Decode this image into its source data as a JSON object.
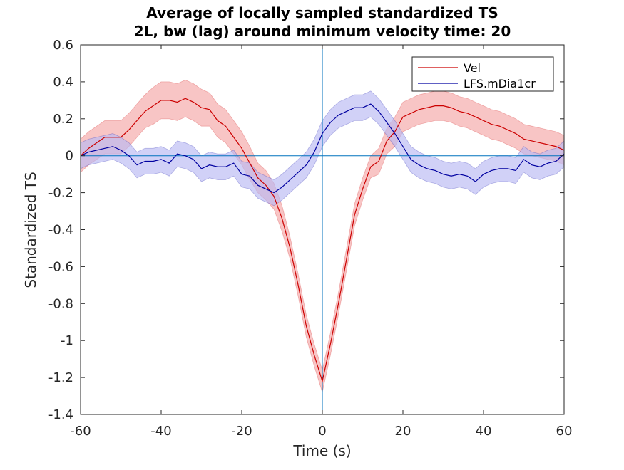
{
  "chart_data": {
    "type": "line",
    "title": [
      "Average of locally sampled standardized TS",
      "2L, bw (lag) around minimum velocity time: 20"
    ],
    "xlabel": "Time (s)",
    "ylabel": "Standardized TS",
    "xlim": [
      -60,
      60
    ],
    "ylim": [
      -1.4,
      0.6
    ],
    "xticks": [
      -60,
      -40,
      -20,
      0,
      20,
      40,
      60
    ],
    "xtick_labels": [
      "-60",
      "-40",
      "-20",
      "0",
      "20",
      "40",
      "60"
    ],
    "yticks": [
      -1.4,
      -1.2,
      -1.0,
      -0.8,
      -0.6,
      -0.4,
      -0.2,
      0,
      0.2,
      0.4,
      0.6
    ],
    "ytick_labels": [
      "-1.4",
      "-1.2",
      "-1",
      "-0.8",
      "-0.6",
      "-0.4",
      "-0.2",
      "0",
      "0.2",
      "0.4",
      "0.6"
    ],
    "grid": false,
    "legend_position": "top-right",
    "reference_lines": {
      "vertical_x": 0,
      "horizontal_y": 0,
      "color": "#0072bd"
    },
    "x": [
      -60,
      -58,
      -56,
      -54,
      -52,
      -50,
      -48,
      -46,
      -44,
      -42,
      -40,
      -38,
      -36,
      -34,
      -32,
      -30,
      -28,
      -26,
      -24,
      -22,
      -20,
      -18,
      -16,
      -14,
      -12,
      -10,
      -8,
      -6,
      -4,
      -2,
      0,
      2,
      4,
      6,
      8,
      10,
      12,
      14,
      16,
      18,
      20,
      22,
      24,
      26,
      28,
      30,
      32,
      34,
      36,
      38,
      40,
      42,
      44,
      46,
      48,
      50,
      52,
      54,
      56,
      58,
      60
    ],
    "series": [
      {
        "name": "Vel",
        "color": "#cc0000",
        "band_color": "#f4a6a6",
        "values": [
          0.0,
          0.04,
          0.07,
          0.1,
          0.1,
          0.1,
          0.14,
          0.19,
          0.24,
          0.27,
          0.3,
          0.3,
          0.29,
          0.31,
          0.29,
          0.26,
          0.25,
          0.19,
          0.16,
          0.1,
          0.04,
          -0.04,
          -0.12,
          -0.16,
          -0.22,
          -0.34,
          -0.5,
          -0.7,
          -0.92,
          -1.08,
          -1.22,
          -1.02,
          -0.8,
          -0.56,
          -0.32,
          -0.18,
          -0.06,
          -0.03,
          0.08,
          0.13,
          0.21,
          0.23,
          0.25,
          0.26,
          0.27,
          0.27,
          0.26,
          0.24,
          0.23,
          0.21,
          0.19,
          0.17,
          0.16,
          0.14,
          0.12,
          0.09,
          0.08,
          0.07,
          0.06,
          0.05,
          0.03
        ],
        "band": [
          0.09,
          0.09,
          0.09,
          0.09,
          0.09,
          0.09,
          0.09,
          0.09,
          0.09,
          0.1,
          0.1,
          0.1,
          0.1,
          0.1,
          0.1,
          0.1,
          0.09,
          0.09,
          0.09,
          0.09,
          0.09,
          0.09,
          0.08,
          0.08,
          0.07,
          0.07,
          0.06,
          0.06,
          0.06,
          0.06,
          0.06,
          0.06,
          0.06,
          0.06,
          0.06,
          0.06,
          0.06,
          0.07,
          0.07,
          0.08,
          0.08,
          0.08,
          0.08,
          0.08,
          0.08,
          0.08,
          0.08,
          0.08,
          0.08,
          0.08,
          0.08,
          0.08,
          0.08,
          0.08,
          0.08,
          0.08,
          0.08,
          0.08,
          0.08,
          0.08,
          0.08
        ]
      },
      {
        "name": "LFS.mDia1cr",
        "color": "#0000a0",
        "band_color": "#b8b8f2",
        "values": [
          0.0,
          0.02,
          0.03,
          0.04,
          0.05,
          0.03,
          0.0,
          -0.05,
          -0.03,
          -0.03,
          -0.02,
          -0.04,
          0.01,
          0.0,
          -0.02,
          -0.07,
          -0.05,
          -0.06,
          -0.06,
          -0.04,
          -0.1,
          -0.11,
          -0.16,
          -0.18,
          -0.2,
          -0.17,
          -0.13,
          -0.09,
          -0.05,
          0.02,
          0.12,
          0.18,
          0.22,
          0.24,
          0.26,
          0.26,
          0.28,
          0.24,
          0.18,
          0.12,
          0.05,
          -0.02,
          -0.05,
          -0.07,
          -0.08,
          -0.1,
          -0.11,
          -0.1,
          -0.11,
          -0.14,
          -0.1,
          -0.08,
          -0.07,
          -0.07,
          -0.08,
          -0.02,
          -0.05,
          -0.06,
          -0.04,
          -0.03,
          0.01
        ],
        "band": [
          0.07,
          0.07,
          0.07,
          0.07,
          0.07,
          0.07,
          0.07,
          0.07,
          0.07,
          0.07,
          0.07,
          0.07,
          0.07,
          0.07,
          0.07,
          0.07,
          0.07,
          0.07,
          0.07,
          0.07,
          0.07,
          0.07,
          0.07,
          0.07,
          0.07,
          0.07,
          0.07,
          0.07,
          0.07,
          0.07,
          0.07,
          0.07,
          0.07,
          0.07,
          0.07,
          0.07,
          0.07,
          0.07,
          0.07,
          0.07,
          0.07,
          0.07,
          0.07,
          0.07,
          0.07,
          0.07,
          0.07,
          0.07,
          0.07,
          0.07,
          0.07,
          0.07,
          0.07,
          0.07,
          0.07,
          0.07,
          0.07,
          0.07,
          0.07,
          0.07,
          0.07
        ]
      }
    ]
  }
}
